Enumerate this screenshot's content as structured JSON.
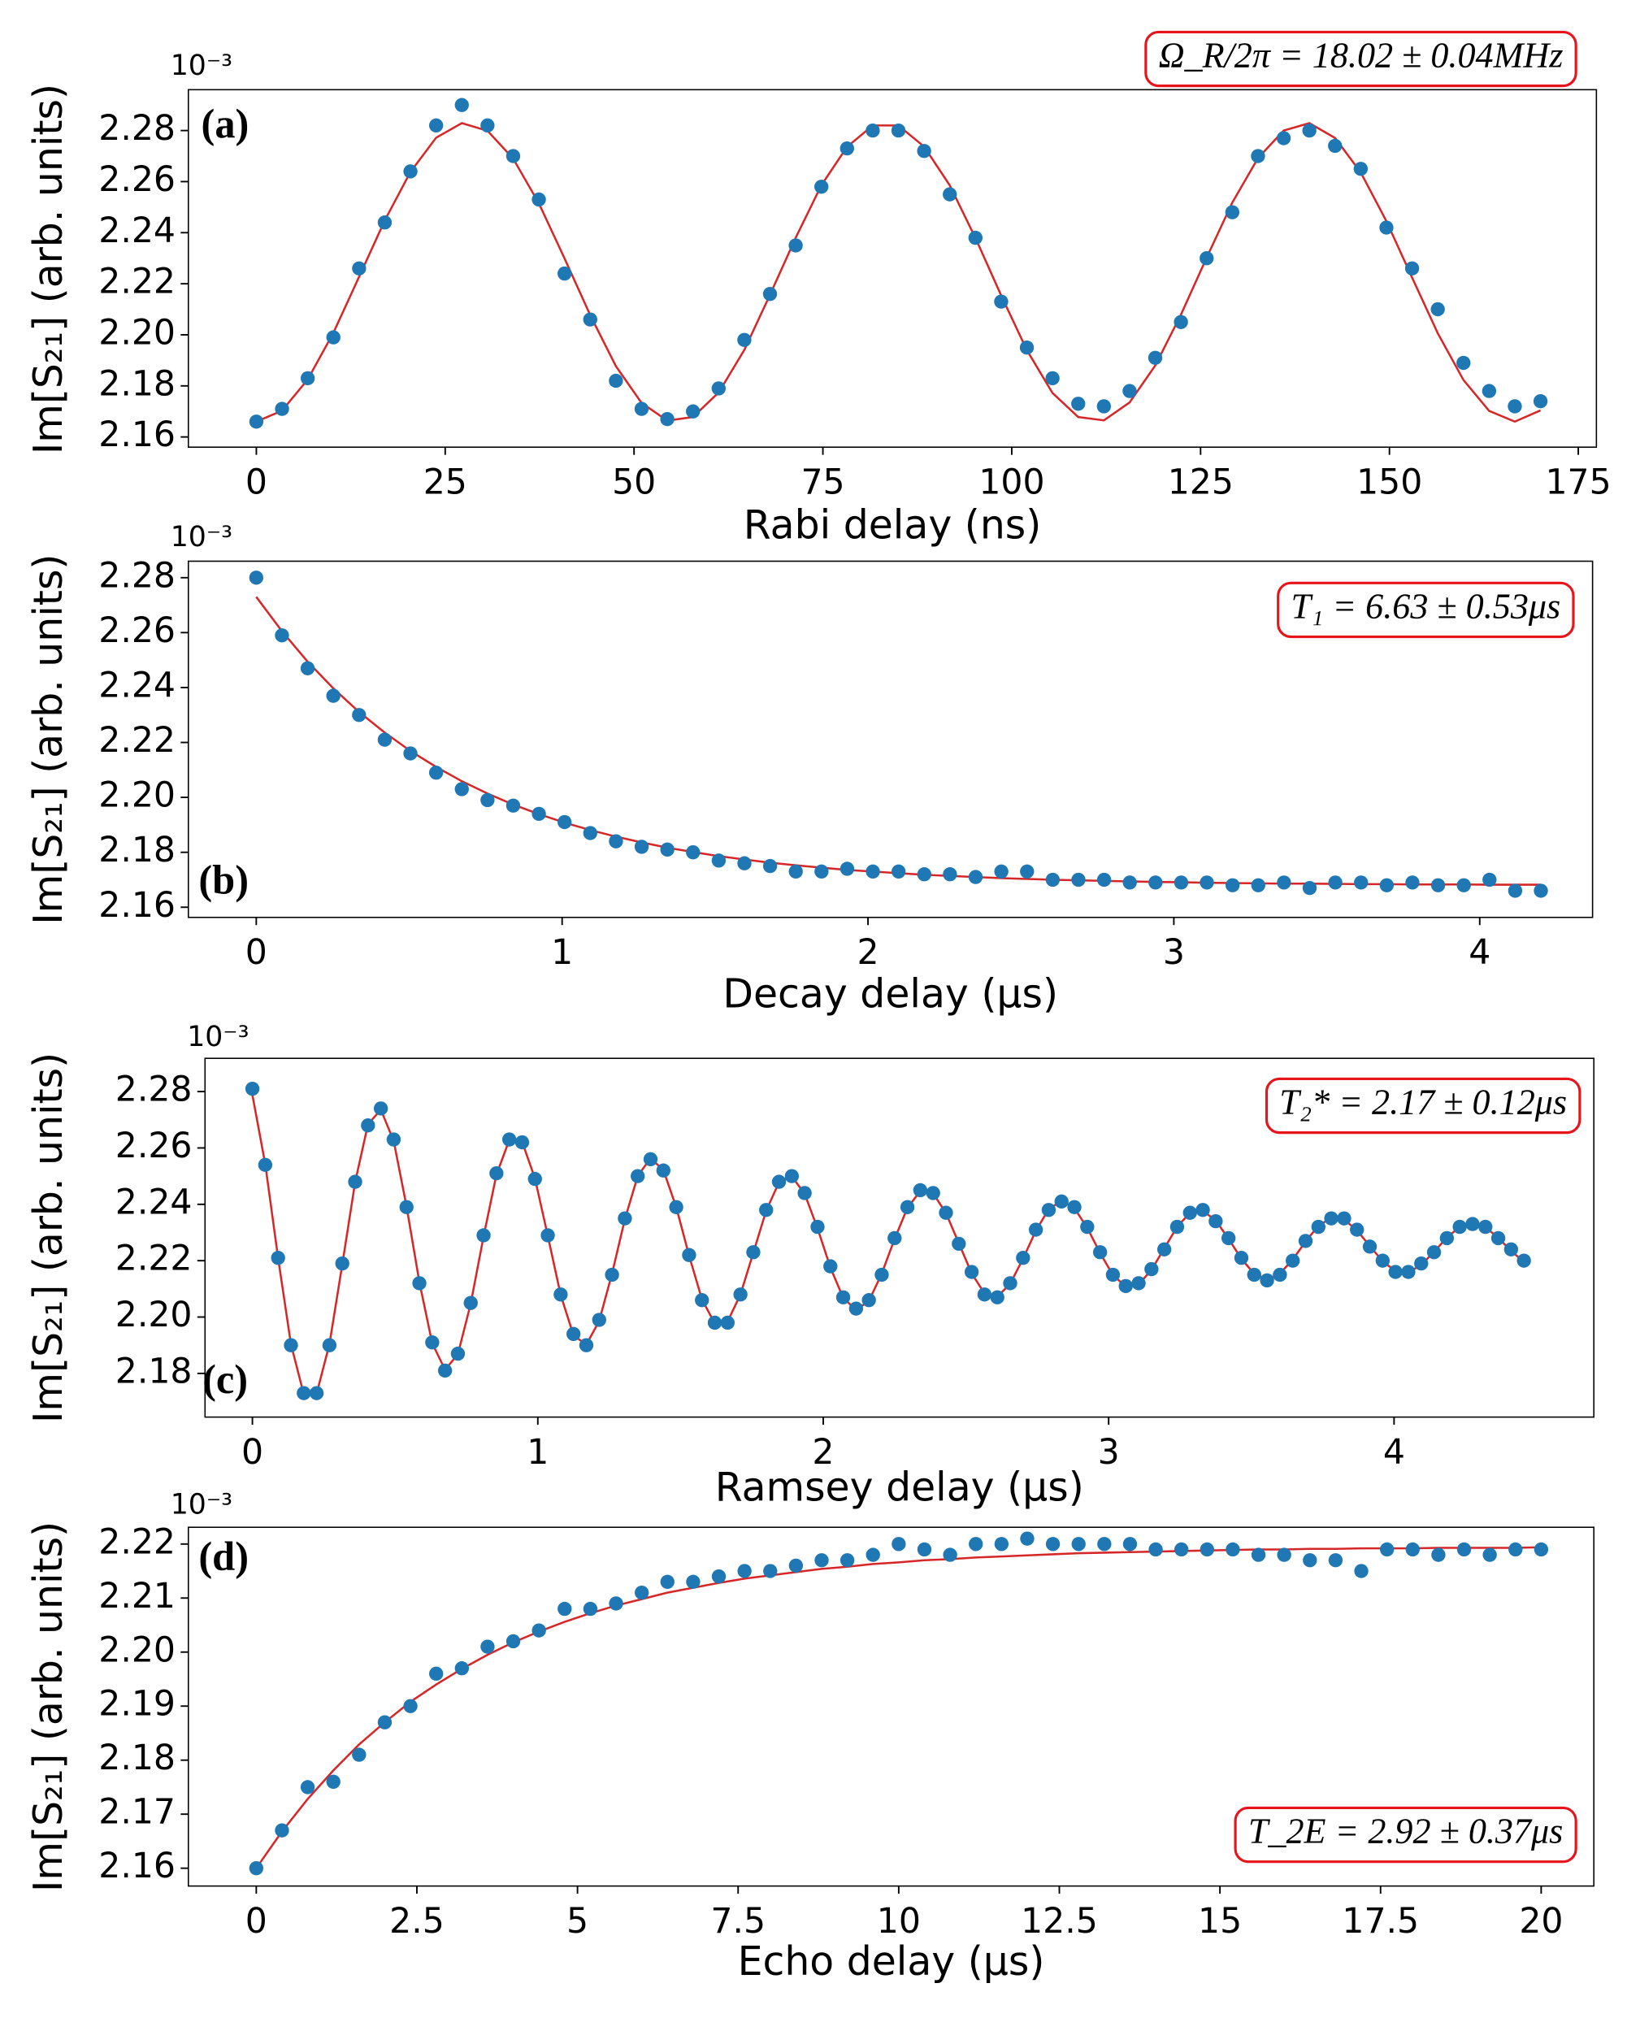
{
  "chart_data": [
    {
      "type": "scatter",
      "panel_label": "(a)",
      "y_offset_label": "10⁻³",
      "annotation": "Ω_R/2π = 18.02 ± 0.04MHz",
      "xlabel": "Rabi delay (ns)",
      "ylabel": "Im[S₂₁] (arb. units)",
      "xlim": [
        -9,
        177.4
      ],
      "ylim": [
        2.156,
        2.296
      ],
      "xticks": [
        0,
        25,
        50,
        75,
        100,
        125,
        150,
        175
      ],
      "yticks": [
        2.16,
        2.18,
        {
          "value": 2.2,
          "label": "2.20"
        },
        2.22,
        2.24,
        2.26,
        2.28
      ],
      "x": [
        0,
        3.4,
        6.8,
        10.2,
        13.6,
        17,
        20.4,
        23.8,
        27.2,
        30.6,
        34,
        37.4,
        40.8,
        44.2,
        47.6,
        51,
        54.4,
        57.8,
        61.2,
        64.6,
        68,
        71.4,
        74.8,
        78.2,
        81.6,
        85,
        88.4,
        91.8,
        95.2,
        98.6,
        102,
        105.4,
        108.8,
        112.2,
        115.6,
        119,
        122.4,
        125.8,
        129.2,
        132.6,
        136,
        139.4,
        142.8,
        146.2,
        149.6,
        153,
        156.4,
        159.8,
        163.2,
        166.6,
        170
      ],
      "series": [
        {
          "style": "markers",
          "color": "#1f77b4",
          "values": [
            2.166,
            2.171,
            2.183,
            2.199,
            2.226,
            2.244,
            2.264,
            2.282,
            2.29,
            2.282,
            2.27,
            2.253,
            2.224,
            2.206,
            2.182,
            2.171,
            2.167,
            2.17,
            2.179,
            2.198,
            2.216,
            2.235,
            2.258,
            2.273,
            2.28,
            2.28,
            2.272,
            2.255,
            2.238,
            2.213,
            2.195,
            2.183,
            2.173,
            2.172,
            2.178,
            2.191,
            2.205,
            2.23,
            2.248,
            2.27,
            2.277,
            2.28,
            2.274,
            2.265,
            2.242,
            2.226,
            2.21,
            2.189,
            2.178,
            2.172,
            2.174
          ]
        },
        {
          "style": "line",
          "color": "#d62728",
          "values": [
            2.166,
            2.1703,
            2.1825,
            2.2008,
            2.2227,
            2.2448,
            2.2638,
            2.2772,
            2.2829,
            2.2799,
            2.269,
            2.2515,
            2.2299,
            2.2077,
            2.1877,
            2.1733,
            2.1664,
            2.1678,
            2.1774,
            2.1941,
            2.2157,
            2.238,
            2.2586,
            2.2736,
            2.282,
            2.282,
            2.2737,
            2.2585,
            2.2379,
            2.2154,
            2.194,
            2.1772,
            2.1678,
            2.1665,
            2.1735,
            2.188,
            2.2079,
            2.2302,
            2.2518,
            2.2692,
            2.28,
            2.2829,
            2.2771,
            2.2636,
            2.2445,
            2.2224,
            2.2006,
            2.1823,
            2.1702,
            2.166,
            2.1704
          ]
        }
      ]
    },
    {
      "type": "scatter",
      "panel_label": "(b)",
      "y_offset_label": "10⁻³",
      "annotation": "T₁ = 6.63 ± 0.53μs",
      "xlabel": "Decay delay (μs)",
      "ylabel": "Im[S₂₁] (arb. units)",
      "xlim": [
        -0.222,
        4.369
      ],
      "ylim": [
        2.1563,
        2.286
      ],
      "xticks": [
        0,
        1,
        2,
        3,
        4
      ],
      "yticks": [
        2.16,
        2.18,
        {
          "value": 2.2,
          "label": "2.20"
        },
        2.22,
        2.24,
        2.26,
        2.28
      ],
      "x": [
        0,
        0.084,
        0.168,
        0.252,
        0.336,
        0.42,
        0.504,
        0.588,
        0.672,
        0.756,
        0.84,
        0.924,
        1.008,
        1.092,
        1.176,
        1.26,
        1.344,
        1.428,
        1.512,
        1.596,
        1.68,
        1.764,
        1.848,
        1.932,
        2.016,
        2.1,
        2.184,
        2.268,
        2.352,
        2.436,
        2.52,
        2.604,
        2.688,
        2.772,
        2.856,
        2.94,
        3.024,
        3.108,
        3.192,
        3.276,
        3.36,
        3.444,
        3.528,
        3.612,
        3.696,
        3.78,
        3.864,
        3.948,
        4.032,
        4.116,
        4.2
      ],
      "series": [
        {
          "style": "markers",
          "color": "#1f77b4",
          "values": [
            2.28,
            2.259,
            2.247,
            2.237,
            2.23,
            2.221,
            2.216,
            2.209,
            2.203,
            2.199,
            2.197,
            2.194,
            2.191,
            2.187,
            2.184,
            2.182,
            2.181,
            2.18,
            2.177,
            2.176,
            2.175,
            2.173,
            2.173,
            2.174,
            2.173,
            2.173,
            2.172,
            2.172,
            2.171,
            2.173,
            2.173,
            2.17,
            2.17,
            2.17,
            2.169,
            2.169,
            2.169,
            2.169,
            2.168,
            2.168,
            2.169,
            2.167,
            2.169,
            2.169,
            2.168,
            2.169,
            2.168,
            2.168,
            2.17,
            2.166,
            2.166
          ]
        },
        {
          "style": "line",
          "color": "#d62728",
          "values": [
            2.273,
            2.2605,
            2.2494,
            2.2397,
            2.2311,
            2.2236,
            2.2169,
            2.2111,
            2.2059,
            2.2014,
            2.1974,
            2.1939,
            2.1908,
            2.1881,
            2.1857,
            2.1836,
            2.1817,
            2.1801,
            2.1786,
            2.1774,
            2.1762,
            2.1753,
            2.1744,
            2.1736,
            2.173,
            2.1724,
            2.1718,
            2.1714,
            2.171,
            2.1706,
            2.1703,
            2.17,
            2.1698,
            2.1696,
            2.1694,
            2.1692,
            2.1691,
            2.1689,
            2.1688,
            2.1687,
            2.1686,
            2.1686,
            2.1685,
            2.1684,
            2.1684,
            2.1683,
            2.1683,
            2.1683,
            2.1682,
            2.1682,
            2.1682
          ]
        }
      ]
    },
    {
      "type": "scatter",
      "panel_label": "(c)",
      "y_offset_label": "10⁻³",
      "annotation": "T₂* = 2.17 ± 0.12μs",
      "xlabel": "Ramsey delay (μs)",
      "ylabel": "Im[S₂₁] (arb. units)",
      "xlim": [
        -0.166,
        4.7
      ],
      "ylim": [
        2.1645,
        2.2918
      ],
      "xticks": [
        0,
        1,
        2,
        3,
        4
      ],
      "yticks": [
        2.18,
        {
          "value": 2.2,
          "label": "2.20"
        },
        2.22,
        2.24,
        2.26,
        2.28
      ],
      "x": [
        0,
        0.045,
        0.09,
        0.135,
        0.18,
        0.225,
        0.27,
        0.315,
        0.36,
        0.405,
        0.45,
        0.495,
        0.54,
        0.585,
        0.63,
        0.675,
        0.72,
        0.765,
        0.81,
        0.855,
        0.9,
        0.945,
        0.99,
        1.035,
        1.08,
        1.125,
        1.17,
        1.215,
        1.26,
        1.305,
        1.35,
        1.395,
        1.44,
        1.485,
        1.53,
        1.575,
        1.62,
        1.665,
        1.71,
        1.755,
        1.8,
        1.845,
        1.89,
        1.935,
        1.98,
        2.025,
        2.07,
        2.115,
        2.16,
        2.205,
        2.25,
        2.295,
        2.34,
        2.385,
        2.43,
        2.475,
        2.52,
        2.565,
        2.61,
        2.655,
        2.7,
        2.745,
        2.79,
        2.835,
        2.88,
        2.925,
        2.97,
        3.015,
        3.06,
        3.105,
        3.15,
        3.195,
        3.24,
        3.285,
        3.33,
        3.375,
        3.42,
        3.465,
        3.51,
        3.555,
        3.6,
        3.645,
        3.69,
        3.735,
        3.78,
        3.825,
        3.87,
        3.915,
        3.96,
        4.005,
        4.05,
        4.095,
        4.14,
        4.185,
        4.23,
        4.275,
        4.32,
        4.365,
        4.41,
        4.455
      ],
      "series": [
        {
          "style": "markers",
          "color": "#1f77b4",
          "values": [
            2.281,
            2.254,
            2.221,
            2.19,
            2.173,
            2.173,
            2.19,
            2.219,
            2.248,
            2.268,
            2.274,
            2.263,
            2.239,
            2.212,
            2.191,
            2.181,
            2.187,
            2.205,
            2.229,
            2.251,
            2.263,
            2.262,
            2.249,
            2.229,
            2.208,
            2.194,
            2.19,
            2.199,
            2.215,
            2.235,
            2.25,
            2.256,
            2.252,
            2.239,
            2.222,
            2.206,
            2.198,
            2.198,
            2.208,
            2.223,
            2.238,
            2.248,
            2.25,
            2.244,
            2.232,
            2.218,
            2.207,
            2.203,
            2.206,
            2.215,
            2.228,
            2.239,
            2.245,
            2.244,
            2.237,
            2.226,
            2.216,
            2.208,
            2.207,
            2.212,
            2.221,
            2.231,
            2.238,
            2.241,
            2.239,
            2.232,
            2.223,
            2.215,
            2.211,
            2.212,
            2.217,
            2.224,
            2.232,
            2.237,
            2.238,
            2.234,
            2.228,
            2.221,
            2.215,
            2.213,
            2.215,
            2.22,
            2.227,
            2.232,
            2.235,
            2.235,
            2.231,
            2.225,
            2.22,
            2.216,
            2.216,
            2.219,
            2.223,
            2.228,
            2.232,
            2.233,
            2.232,
            2.228,
            2.224,
            2.22
          ]
        },
        {
          "style": "line",
          "color": "#d62728",
          "values": [
            2.2788,
            2.2543,
            2.221,
            2.1904,
            2.1726,
            2.1728,
            2.1904,
            2.2187,
            2.2479,
            2.2684,
            2.2736,
            2.2625,
            2.2393,
            2.2124,
            2.1907,
            2.1813,
            2.1868,
            2.2048,
            2.2286,
            2.2505,
            2.2628,
            2.2622,
            2.2492,
            2.2288,
            2.2079,
            2.1935,
            2.1902,
            2.1986,
            2.2154,
            2.2347,
            2.25,
            2.2564,
            2.2521,
            2.239,
            2.2218,
            2.2063,
            2.1977,
            2.1984,
            2.208,
            2.2228,
            2.2377,
            2.2478,
            2.2499,
            2.2437,
            2.2315,
            2.2176,
            2.2068,
            2.2025,
            2.2057,
            2.2154,
            2.2277,
            2.2387,
            2.2447,
            2.2439,
            2.2369,
            2.2262,
            2.2155,
            2.2084,
            2.2072,
            2.2118,
            2.2207,
            2.2306,
            2.2383,
            2.2412,
            2.2386,
            2.2317,
            2.2227,
            2.2149,
            2.2108,
            2.2116,
            2.2167,
            2.2244,
            2.232,
            2.237,
            2.2377,
            2.2343,
            2.2278,
            2.2207,
            2.2153,
            2.2133,
            2.2154,
            2.2204,
            2.2268,
            2.2324,
            2.2352,
            2.2346,
            2.2308,
            2.2252,
            2.2198,
            2.2163,
            2.2158,
            2.2185,
            2.2231,
            2.2282,
            2.232,
            2.2334,
            2.2319,
            2.2281,
            2.2235,
            2.2196
          ]
        }
      ]
    },
    {
      "type": "scatter",
      "panel_label": "(d)",
      "y_offset_label": "10⁻³",
      "annotation": "T_2E = 2.92 ± 0.37μs",
      "xlabel": "Echo delay (μs)",
      "ylabel": "Im[S₂₁] (arb. units)",
      "xlim": [
        -1.057,
        20.82
      ],
      "ylim": [
        2.1567,
        2.2231
      ],
      "xticks": [
        0,
        2.5,
        5,
        7.5,
        10,
        12.5,
        15,
        17.5,
        20
      ],
      "yticks": [
        2.16,
        2.17,
        2.18,
        2.19,
        {
          "value": 2.2,
          "label": "2.20"
        },
        2.21,
        2.22
      ],
      "x": [
        0,
        0.4,
        0.8,
        1.2,
        1.6,
        2,
        2.4,
        2.8,
        3.2,
        3.6,
        4,
        4.4,
        4.8,
        5.2,
        5.6,
        6,
        6.4,
        6.8,
        7.2,
        7.6,
        8,
        8.4,
        8.8,
        9.2,
        9.6,
        10,
        10.4,
        10.8,
        11.2,
        11.6,
        12,
        12.4,
        12.8,
        13.2,
        13.6,
        14,
        14.4,
        14.8,
        15.2,
        15.6,
        16,
        16.4,
        16.8,
        17.2,
        17.6,
        18,
        18.4,
        18.8,
        19.2,
        19.6,
        20
      ],
      "series": [
        {
          "style": "markers",
          "color": "#1f77b4",
          "values": [
            2.16,
            2.167,
            2.175,
            2.176,
            2.181,
            2.187,
            2.19,
            2.196,
            2.197,
            2.201,
            2.202,
            2.204,
            2.208,
            2.208,
            2.209,
            2.211,
            2.213,
            2.213,
            2.214,
            2.215,
            2.215,
            2.216,
            2.217,
            2.217,
            2.218,
            2.22,
            2.219,
            2.218,
            2.22,
            2.22,
            2.221,
            2.22,
            2.22,
            2.22,
            2.22,
            2.219,
            2.219,
            2.219,
            2.219,
            2.218,
            2.218,
            2.217,
            2.217,
            2.215,
            2.219,
            2.219,
            2.218,
            2.219,
            2.218,
            2.219,
            2.219
          ]
        },
        {
          "style": "line",
          "color": "#d62728",
          "values": [
            2.16,
            2.1668,
            2.1728,
            2.1781,
            2.1829,
            2.187,
            2.1908,
            2.194,
            2.1969,
            2.1995,
            2.2018,
            2.2038,
            2.2056,
            2.2072,
            2.2086,
            2.2098,
            2.211,
            2.2119,
            2.2128,
            2.2136,
            2.2142,
            2.2148,
            2.2154,
            2.2158,
            2.2163,
            2.2166,
            2.217,
            2.2172,
            2.2175,
            2.2177,
            2.2179,
            2.2181,
            2.2183,
            2.2184,
            2.2185,
            2.2186,
            2.2187,
            2.2188,
            2.2189,
            2.219,
            2.219,
            2.2191,
            2.2191,
            2.2192,
            2.2192,
            2.2192,
            2.2193,
            2.2193,
            2.2193,
            2.2193,
            2.2194
          ]
        }
      ]
    }
  ]
}
